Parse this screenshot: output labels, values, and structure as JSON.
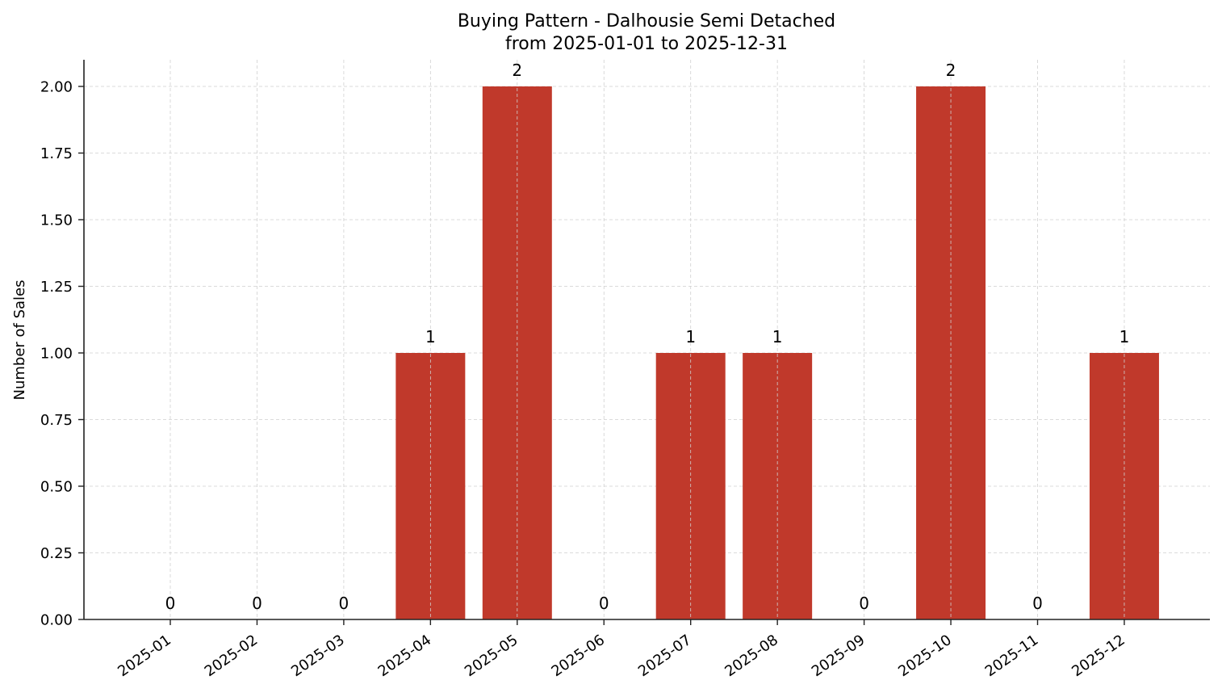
{
  "chart_data": {
    "type": "bar",
    "title": "Buying Pattern - Dalhousie Semi Detached",
    "subtitle": "from 2025-01-01 to 2025-12-31",
    "xlabel": "",
    "ylabel": "Number of Sales",
    "categories": [
      "2025-01",
      "2025-02",
      "2025-03",
      "2025-04",
      "2025-05",
      "2025-06",
      "2025-07",
      "2025-08",
      "2025-09",
      "2025-10",
      "2025-11",
      "2025-12"
    ],
    "values": [
      0,
      0,
      0,
      1,
      2,
      0,
      1,
      1,
      0,
      2,
      0,
      1
    ],
    "data_labels": [
      "0",
      "0",
      "0",
      "1",
      "2",
      "0",
      "1",
      "1",
      "0",
      "2",
      "0",
      "1"
    ],
    "ylim": [
      0,
      2.1
    ],
    "yticks": [
      0,
      0.25,
      0.5,
      0.75,
      1.0,
      1.25,
      1.5,
      1.75,
      2.0
    ],
    "ytick_labels": [
      "0.00",
      "0.25",
      "0.50",
      "0.75",
      "1.00",
      "1.25",
      "1.50",
      "1.75",
      "2.00"
    ],
    "grid": true,
    "legend": null,
    "bar_color": "#C0392B"
  }
}
